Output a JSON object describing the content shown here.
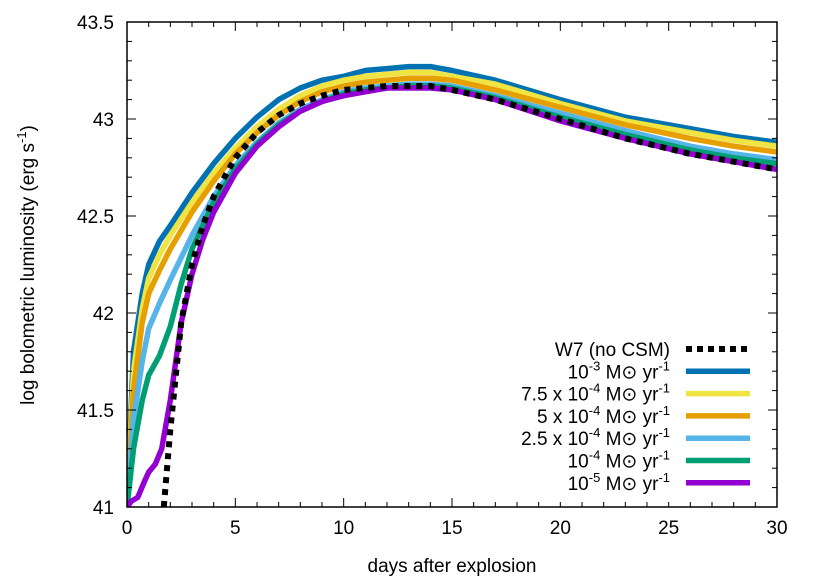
{
  "chart_data": {
    "type": "line",
    "title": "",
    "xlabel": "days after explosion",
    "ylabel": "log bolometric luminosity (erg s⁻¹)",
    "xlim": [
      0,
      30
    ],
    "ylim": [
      41,
      43.5
    ],
    "xticks": [
      "0",
      "5",
      "10",
      "15",
      "20",
      "25",
      "30"
    ],
    "yticks": [
      "41",
      "41.5",
      "42",
      "42.5",
      "43",
      "43.5"
    ],
    "grid": false,
    "legend_position": "lower right",
    "series": [
      {
        "name": "W7 (no CSM)",
        "color": "#000000",
        "dash": "dotted",
        "x": [
          1.7,
          2.0,
          2.5,
          3,
          3.5,
          4,
          5,
          6,
          7,
          8,
          9,
          10,
          11,
          12,
          13,
          14,
          15,
          17,
          20,
          23,
          26,
          28,
          30
        ],
        "y": [
          41.0,
          41.4,
          41.95,
          42.25,
          42.45,
          42.6,
          42.8,
          42.93,
          43.02,
          43.08,
          43.12,
          43.15,
          43.16,
          43.17,
          43.17,
          43.17,
          43.15,
          43.1,
          43.0,
          42.9,
          42.82,
          42.78,
          42.74
        ]
      },
      {
        "name": "10⁻³ M⊙ yr⁻¹",
        "color": "#0072B2",
        "dash": "solid",
        "x": [
          0,
          0.3,
          0.7,
          1,
          1.5,
          2,
          3,
          4,
          5,
          6,
          7,
          8,
          9,
          10,
          11,
          12,
          13,
          14,
          15,
          17,
          20,
          23,
          26,
          28,
          30
        ],
        "y": [
          41.0,
          41.8,
          42.1,
          42.25,
          42.37,
          42.45,
          42.62,
          42.77,
          42.9,
          43.01,
          43.1,
          43.16,
          43.2,
          43.22,
          43.25,
          43.26,
          43.27,
          43.27,
          43.25,
          43.2,
          43.1,
          43.01,
          42.95,
          42.91,
          42.88
        ]
      },
      {
        "name": "7.5 x 10⁻⁴ M⊙ yr⁻¹",
        "color": "#F0E442",
        "dash": "solid",
        "x": [
          0,
          0.3,
          0.7,
          1,
          1.5,
          2,
          3,
          4,
          5,
          6,
          7,
          8,
          9,
          10,
          11,
          12,
          13,
          14,
          15,
          17,
          20,
          23,
          26,
          28,
          30
        ],
        "y": [
          41.0,
          41.7,
          42.02,
          42.18,
          42.3,
          42.4,
          42.57,
          42.72,
          42.85,
          42.96,
          43.05,
          43.12,
          43.17,
          43.2,
          43.22,
          43.23,
          43.24,
          43.24,
          43.22,
          43.18,
          43.08,
          42.99,
          42.93,
          42.89,
          42.86
        ]
      },
      {
        "name": "5 x 10⁻⁴ M⊙ yr⁻¹",
        "color": "#E69F00",
        "dash": "solid",
        "x": [
          0,
          0.3,
          0.7,
          1,
          1.5,
          2,
          3,
          4,
          5,
          6,
          7,
          8,
          9,
          10,
          11,
          12,
          13,
          14,
          15,
          17,
          20,
          23,
          26,
          28,
          30
        ],
        "y": [
          41.0,
          41.6,
          41.95,
          42.1,
          42.22,
          42.33,
          42.52,
          42.68,
          42.82,
          42.93,
          43.02,
          43.09,
          43.14,
          43.17,
          43.19,
          43.2,
          43.21,
          43.21,
          43.2,
          43.15,
          43.06,
          42.97,
          42.9,
          42.86,
          42.83
        ]
      },
      {
        "name": "2.5 x 10⁻⁴ M⊙ yr⁻¹",
        "color": "#56B4E9",
        "dash": "solid",
        "x": [
          0,
          0.3,
          0.7,
          1,
          1.5,
          2,
          3,
          4,
          5,
          6,
          7,
          8,
          9,
          10,
          11,
          12,
          13,
          14,
          15,
          17,
          20,
          23,
          26,
          28,
          30
        ],
        "y": [
          41.0,
          41.45,
          41.75,
          41.92,
          42.05,
          42.17,
          42.4,
          42.6,
          42.76,
          42.88,
          42.98,
          43.05,
          43.1,
          43.14,
          43.16,
          43.17,
          43.18,
          43.18,
          43.17,
          43.12,
          43.03,
          42.94,
          42.86,
          42.82,
          42.79
        ]
      },
      {
        "name": "10⁻⁴ M⊙ yr⁻¹",
        "color": "#009E73",
        "dash": "solid",
        "x": [
          0,
          0.3,
          0.7,
          1,
          1.5,
          2,
          2.5,
          3,
          4,
          5,
          6,
          7,
          8,
          9,
          10,
          11,
          12,
          13,
          14,
          15,
          17,
          20,
          23,
          26,
          28,
          30
        ],
        "y": [
          41.0,
          41.3,
          41.55,
          41.68,
          41.78,
          41.93,
          42.15,
          42.33,
          42.57,
          42.74,
          42.87,
          42.97,
          43.04,
          43.09,
          43.13,
          43.15,
          43.16,
          43.17,
          43.17,
          43.16,
          43.11,
          43.01,
          42.92,
          42.84,
          42.8,
          42.77
        ]
      },
      {
        "name": "10⁻⁵ M⊙ yr⁻¹",
        "color": "#9400D3",
        "dash": "solid",
        "x": [
          0,
          0.2,
          0.5,
          0.8,
          1.0,
          1.3,
          1.6,
          2.0,
          2.5,
          3,
          3.5,
          4,
          5,
          6,
          7,
          8,
          9,
          10,
          11,
          12,
          13,
          14,
          15,
          17,
          20,
          23,
          26,
          28,
          30
        ],
        "y": [
          41.0,
          41.03,
          41.05,
          41.13,
          41.18,
          41.22,
          41.3,
          41.55,
          41.95,
          42.2,
          42.38,
          42.52,
          42.72,
          42.86,
          42.96,
          43.04,
          43.09,
          43.12,
          43.14,
          43.16,
          43.16,
          43.16,
          43.15,
          43.1,
          42.99,
          42.9,
          42.82,
          42.78,
          42.74
        ]
      }
    ]
  },
  "legend": {
    "items": [
      {
        "label": "W7 (no CSM)"
      },
      {
        "base": "10",
        "exp": "-3",
        "unit": "M⊙ yr",
        "unit_exp": "-1"
      },
      {
        "pre": "7.5 x ",
        "base": "10",
        "exp": "-4",
        "unit": "M⊙ yr",
        "unit_exp": "-1"
      },
      {
        "pre": "5 x ",
        "base": "10",
        "exp": "-4",
        "unit": "M⊙ yr",
        "unit_exp": "-1"
      },
      {
        "pre": "2.5 x ",
        "base": "10",
        "exp": "-4",
        "unit": "M⊙ yr",
        "unit_exp": "-1"
      },
      {
        "base": "10",
        "exp": "-4",
        "unit": "M⊙ yr",
        "unit_exp": "-1"
      },
      {
        "base": "10",
        "exp": "-5",
        "unit": "M⊙ yr",
        "unit_exp": "-1"
      }
    ]
  },
  "axes": {
    "xlabel": "days after explosion",
    "ylabel_main": "log bolometric luminosity (erg s",
    "ylabel_exp": "-1",
    "ylabel_close": ")"
  }
}
